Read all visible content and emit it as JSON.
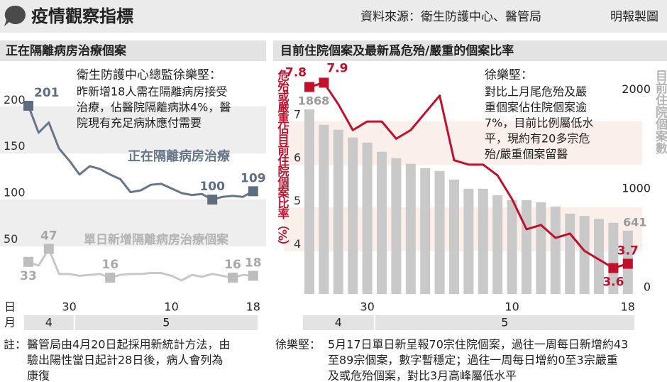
{
  "header": {
    "title": "疫情觀察指標",
    "source": "資料來源：衛生防護中心、醫管局",
    "credit": "明報製圖"
  },
  "chart_data": [
    {
      "type": "line",
      "title": "正在隔離病房治療個案",
      "annotation": {
        "title": "衛生防護中心總監徐樂堅：",
        "lines": [
          "昨新增18人需在隔離病房接受",
          "治療，佔醫院隔離病牀4%，醫",
          "院現有充足病牀應付需要"
        ]
      },
      "xlabel_day": "日",
      "xlabel_month": "月",
      "categories": [
        null,
        null,
        null,
        null,
        "30",
        null,
        null,
        null,
        null,
        null,
        null,
        null,
        null,
        null,
        "10",
        null,
        null,
        null,
        null,
        null,
        null,
        null,
        "18"
      ],
      "month_groups": [
        {
          "label": "4",
          "count": 5
        },
        {
          "label": "5",
          "count": 18
        }
      ],
      "ylim": [
        0,
        230
      ],
      "yticks": [
        50,
        100,
        150,
        200
      ],
      "bands": true,
      "band_color": "#eeeeee",
      "series": [
        {
          "name": "正在隔離病房治療",
          "color": "#667689",
          "marker_color": "#5f6d80",
          "values": [
            201,
            172,
            183,
            155,
            142,
            127,
            136,
            133,
            127,
            122,
            108,
            110,
            116,
            117,
            112,
            107,
            105,
            106,
            100,
            103,
            104,
            103,
            109
          ],
          "labeled_points": [
            0,
            18,
            22
          ]
        },
        {
          "name": "單日新增隔離病房治療個案",
          "color": "#c8c8c8",
          "marker_color": "#bdbdbd",
          "values": [
            33,
            29,
            47,
            20,
            20,
            18,
            19,
            20,
            16,
            19,
            20,
            20,
            21,
            21,
            18,
            13,
            19,
            17,
            20,
            18,
            16,
            19,
            18
          ],
          "labeled_points": [
            0,
            2,
            8,
            20,
            22
          ]
        }
      ],
      "notes": {
        "prefix": "註：",
        "lines": [
          "醫管局由4月20日起採用新統計方法，由",
          "驗出陽性當日起計28日後，病人會列為",
          "康復"
        ]
      }
    },
    {
      "type": "bar_line",
      "title": "目前住院個案及最新爲危殆/嚴重的個案比率",
      "annotation": {
        "title": "徐樂堅：",
        "lines": [
          "對比上月尾危殆及嚴",
          "重個案佔住院個案逾",
          "7%，目前比例屬低水",
          "平，現約有20多宗危",
          "殆/嚴重個案留醫"
        ]
      },
      "ylabel": "危殆或嚴重佔目前住院個案比率（%）",
      "y2label": "目前住院個案數",
      "categories": [
        null,
        null,
        null,
        null,
        "30",
        null,
        null,
        null,
        null,
        null,
        null,
        null,
        null,
        null,
        "10",
        null,
        null,
        null,
        null,
        null,
        null,
        null,
        "18"
      ],
      "month_groups": [
        {
          "label": "4",
          "count": 5
        },
        {
          "label": "5",
          "count": 18
        }
      ],
      "ylim": [
        3,
        8.5
      ],
      "yticks": [
        4,
        5,
        6,
        7
      ],
      "y2lim": [
        0,
        2400
      ],
      "y2ticks": [
        0,
        1000,
        2000
      ],
      "bands": true,
      "band_color": "#fbefeb",
      "series": [
        {
          "type": "bar",
          "axis": "y2",
          "color": "#c9c9c9",
          "values": [
            1868,
            1712,
            1662,
            1583,
            1532,
            1439,
            1374,
            1317,
            1273,
            1245,
            1158,
            1065,
            1065,
            1000,
            950,
            950,
            928,
            885,
            813,
            790,
            760,
            720,
            641
          ],
          "labeled_points": [
            0,
            22
          ]
        },
        {
          "type": "line",
          "color": "#c0102c",
          "values": [
            7.8,
            7.9,
            7.4,
            6.8,
            7.0,
            7.0,
            6.6,
            6.8,
            7.2,
            7.6,
            6.1,
            6.0,
            6.0,
            5.75,
            5.2,
            4.5,
            4.6,
            4.3,
            4.4,
            4.0,
            3.8,
            3.6,
            3.7
          ],
          "labeled_points": [
            0,
            1,
            21,
            22
          ]
        }
      ],
      "notes": {
        "prefix": "徐樂堅：",
        "lines": [
          "5月17日單日新呈報70宗住院個案，過往一周每日新增約43",
          "至89宗個案，數字暫穩定；過往一周每日增約0至3宗嚴重",
          "及或危殆個案，對比3月高峰屬低水平"
        ]
      }
    }
  ]
}
